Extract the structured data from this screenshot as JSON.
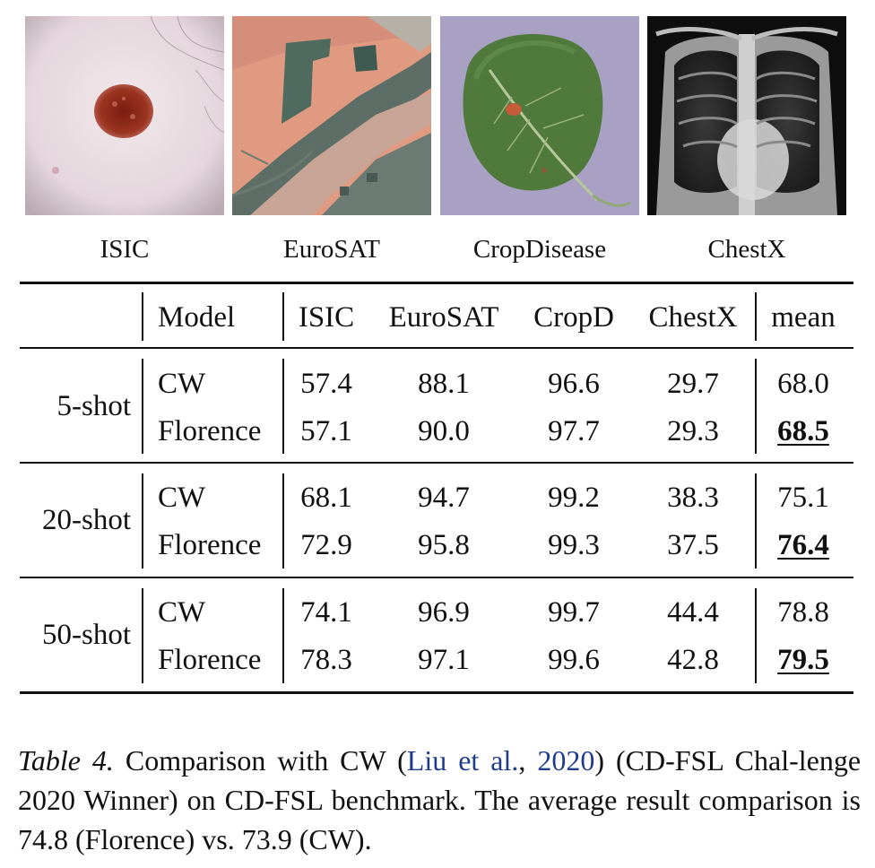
{
  "images": [
    {
      "label": "ISIC"
    },
    {
      "label": "EuroSAT"
    },
    {
      "label": "CropDisease"
    },
    {
      "label": "ChestX"
    }
  ],
  "table": {
    "headers": [
      "Model",
      "ISIC",
      "EuroSAT",
      "CropD",
      "ChestX",
      "mean"
    ],
    "groups": [
      {
        "shot": "5-shot",
        "rows": [
          {
            "model": "CW",
            "values": [
              "57.4",
              "88.1",
              "96.6",
              "29.7",
              "68.0"
            ]
          },
          {
            "model": "Florence",
            "values": [
              "57.1",
              "90.0",
              "97.7",
              "29.3",
              "68.5"
            ]
          }
        ]
      },
      {
        "shot": "20-shot",
        "rows": [
          {
            "model": "CW",
            "values": [
              "68.1",
              "94.7",
              "99.2",
              "38.3",
              "75.1"
            ]
          },
          {
            "model": "Florence",
            "values": [
              "72.9",
              "95.8",
              "99.3",
              "37.5",
              "76.4"
            ]
          }
        ]
      },
      {
        "shot": "50-shot",
        "rows": [
          {
            "model": "CW",
            "values": [
              "74.1",
              "96.9",
              "99.7",
              "44.4",
              "78.8"
            ]
          },
          {
            "model": "Florence",
            "values": [
              "78.3",
              "97.1",
              "99.6",
              "42.8",
              "79.5"
            ]
          }
        ]
      }
    ]
  },
  "caption": {
    "label": "Table 4.",
    "text_a": " Comparison with CW (",
    "cite_author": "Liu et al.",
    "cite_sep": ", ",
    "cite_year": "2020",
    "text_b": ") (CD-FSL Chal-lenge 2020 Winner) on CD-FSL benchmark. The average result comparison is 74.8 (Florence) vs. 73.9 (CW)."
  },
  "colors": {
    "citation": "#1f3c8c"
  }
}
